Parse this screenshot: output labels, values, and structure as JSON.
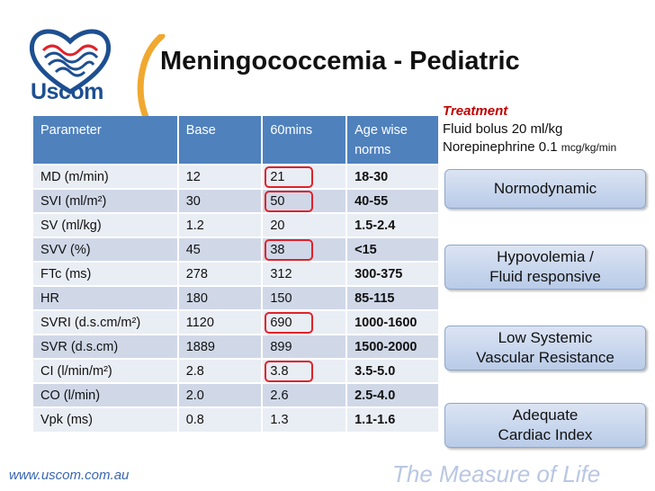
{
  "logo": {
    "text": "Uscom",
    "icon": "heart-wave-logo"
  },
  "title": "Meningococcemia - Pediatric",
  "treatment": {
    "heading": "Treatment",
    "line1": "Fluid bolus 20 ml/kg",
    "line2_main": "Norepinephrine 0.1 ",
    "line2_unit": "mcg/kg/min"
  },
  "table": {
    "headers": [
      "Parameter",
      "Base",
      "60mins",
      "Age wise\nnorms"
    ],
    "rows": [
      {
        "param": "MD (m/min)",
        "base": "12",
        "m60": "21",
        "norm": "18-30",
        "circled": true
      },
      {
        "param": "SVI (ml/m²)",
        "base": "30",
        "m60": "50",
        "norm": "40-55",
        "circled": true
      },
      {
        "param": "SV (ml/kg)",
        "base": "1.2",
        "m60": "20",
        "norm": "1.5-2.4",
        "circled": false
      },
      {
        "param": "SVV (%)",
        "base": "45",
        "m60": "38",
        "norm": "<15",
        "circled": true
      },
      {
        "param": "FTc (ms)",
        "base": "278",
        "m60": "312",
        "norm": "300-375",
        "circled": false
      },
      {
        "param": "HR",
        "base": "180",
        "m60": "150",
        "norm": "85-115",
        "circled": false
      },
      {
        "param": "SVRI (d.s.cm/m²)",
        "base": "1120",
        "m60": "690",
        "norm": "1000-1600",
        "circled": true
      },
      {
        "param": "SVR (d.s.cm)",
        "base": "1889",
        "m60": "899",
        "norm": "1500-2000",
        "circled": false
      },
      {
        "param": "CI (l/min/m²)",
        "base": "2.8",
        "m60": "3.8",
        "norm": "3.5-5.0",
        "circled": true
      },
      {
        "param": "CO (l/min)",
        "base": "2.0",
        "m60": "2.6",
        "norm": "2.5-4.0",
        "circled": false
      },
      {
        "param": "Vpk (ms)",
        "base": "0.8",
        "m60": "1.3",
        "norm": "1.1-1.6",
        "circled": false
      }
    ]
  },
  "states": [
    {
      "lines": [
        "Normodynamic"
      ]
    },
    {
      "lines": [
        "Hypovolemia /",
        "Fluid responsive"
      ]
    },
    {
      "lines": [
        "Low Systemic",
        "Vascular Resistance"
      ]
    },
    {
      "lines": [
        "Adequate",
        "Cardiac Index"
      ]
    }
  ],
  "footer": {
    "url": "www.uscom.com.au",
    "tagline": "The Measure of Life"
  },
  "colors": {
    "header": "#4f81bd",
    "ring": "#e0222a",
    "logo_blue": "#1d4f91",
    "logo_red": "#e0222a",
    "paren": "#f0a830"
  }
}
